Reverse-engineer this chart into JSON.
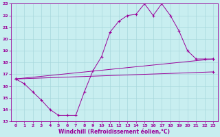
{
  "bg_color": "#c8eef0",
  "grid_color": "#a8d8dc",
  "line_color": "#990099",
  "xlabel": "Windchill (Refroidissement éolien,°C)",
  "xlim": [
    -0.5,
    23.5
  ],
  "ylim": [
    13,
    23
  ],
  "xticks": [
    0,
    1,
    2,
    3,
    4,
    5,
    6,
    7,
    8,
    9,
    10,
    11,
    12,
    13,
    14,
    15,
    16,
    17,
    18,
    19,
    20,
    21,
    22,
    23
  ],
  "yticks": [
    13,
    14,
    15,
    16,
    17,
    18,
    19,
    20,
    21,
    22,
    23
  ],
  "series1_x": [
    0,
    1,
    2,
    3,
    4,
    5,
    6,
    7,
    8,
    9,
    10,
    11,
    12,
    13,
    14,
    15,
    16,
    17,
    18,
    19,
    20,
    21,
    22,
    23
  ],
  "series1_y": [
    16.6,
    16.2,
    15.5,
    14.8,
    14.0,
    13.5,
    13.5,
    13.5,
    15.5,
    17.3,
    18.5,
    20.6,
    21.5,
    22.0,
    22.1,
    23.0,
    22.0,
    23.0,
    22.0,
    20.7,
    19.0,
    18.3,
    18.3,
    18.3
  ],
  "series2_x": [
    0,
    23
  ],
  "series2_y": [
    16.6,
    18.3
  ],
  "series3_x": [
    0,
    23
  ],
  "series3_y": [
    16.6,
    17.2
  ]
}
